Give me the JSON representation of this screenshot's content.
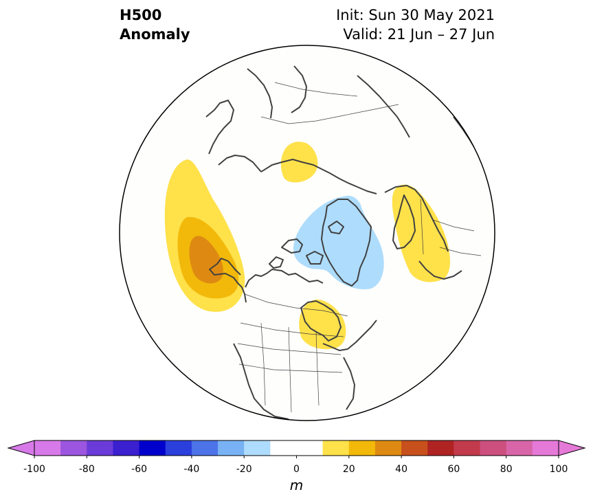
{
  "header": {
    "title_line1": "H500",
    "title_line2": "Anomaly",
    "init": "Init: Sun 30 May 2021",
    "valid": "Valid: 21 Jun – 27 Jun"
  },
  "colorbar": {
    "unit": "m",
    "ticks": [
      "-100",
      "-80",
      "-60",
      "-40",
      "-20",
      "0",
      "20",
      "40",
      "60",
      "80",
      "100"
    ],
    "bins": [
      {
        "from": -100,
        "to": -90,
        "color": "#d779e8"
      },
      {
        "from": -90,
        "to": -80,
        "color": "#9b55de"
      },
      {
        "from": -80,
        "to": -70,
        "color": "#6a3bd8"
      },
      {
        "from": -70,
        "to": -60,
        "color": "#3b20d0"
      },
      {
        "from": -60,
        "to": -50,
        "color": "#0000cc"
      },
      {
        "from": -50,
        "to": -40,
        "color": "#2a3fdc"
      },
      {
        "from": -40,
        "to": -30,
        "color": "#4d73e8"
      },
      {
        "from": -30,
        "to": -20,
        "color": "#79b2f4"
      },
      {
        "from": -20,
        "to": -10,
        "color": "#aedcfc"
      },
      {
        "from": -10,
        "to": 0,
        "color": "#ffffff"
      },
      {
        "from": 0,
        "to": 10,
        "color": "#ffffff"
      },
      {
        "from": 10,
        "to": 20,
        "color": "#ffe14a"
      },
      {
        "from": 20,
        "to": 30,
        "color": "#f2b90a"
      },
      {
        "from": 30,
        "to": 40,
        "color": "#de8a12"
      },
      {
        "from": 40,
        "to": 50,
        "color": "#c8501c"
      },
      {
        "from": 50,
        "to": 60,
        "color": "#b02323"
      },
      {
        "from": 60,
        "to": 70,
        "color": "#c23a4c"
      },
      {
        "from": 70,
        "to": 80,
        "color": "#cc4f7e"
      },
      {
        "from": 80,
        "to": 90,
        "color": "#d865a8"
      },
      {
        "from": 90,
        "to": 100,
        "color": "#e579d8"
      }
    ],
    "extend_low_color": "#d779e8",
    "extend_high_color": "#e579d8"
  },
  "map": {
    "projection": "north polar stereographic",
    "background_color": "#fefefd",
    "coastline_color": "#404040",
    "anomaly_regions": [
      {
        "location": "Gulf of Alaska / NE Pacific",
        "level": 30,
        "color": "#de8a12"
      },
      {
        "location": "Hudson Bay / Central Canada",
        "level": 10,
        "color": "#ffe14a"
      },
      {
        "location": "Greenland",
        "level": -10,
        "color": "#aedcfc"
      },
      {
        "location": "Scandinavia / NW Russia",
        "level": 10,
        "color": "#ffe14a"
      },
      {
        "location": "Siberian Arctic",
        "level": 10,
        "color": "#ffe14a"
      }
    ]
  }
}
